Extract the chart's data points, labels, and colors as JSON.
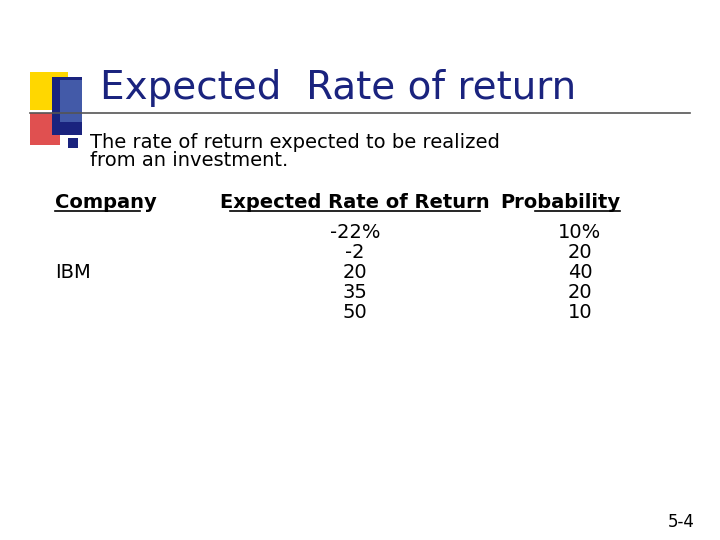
{
  "title": "Expected  Rate of return",
  "title_color": "#1a237e",
  "bullet_text_line1": "The rate of return expected to be realized",
  "bullet_text_line2": "from an investment.",
  "col_headers": [
    "Company",
    "Expected Rate of Return",
    "Probability"
  ],
  "company": "IBM",
  "rates": [
    "-22%",
    "-2",
    "20",
    "35",
    "50"
  ],
  "probabilities": [
    "10%",
    "20",
    "40",
    "20",
    "10"
  ],
  "ibm_row_index": 2,
  "slide_number": "5-4",
  "bg_color": "#ffffff",
  "text_color": "#000000",
  "title_color_hex": "#1a237e",
  "deco_yellow": "#FFD700",
  "deco_red": "#E05050",
  "deco_blue": "#1a237e",
  "deco_lightblue": "#6688CC",
  "title_font_size": 28,
  "body_font_size": 14,
  "table_font_size": 14,
  "header_font_size": 14,
  "slide_num_font_size": 12
}
